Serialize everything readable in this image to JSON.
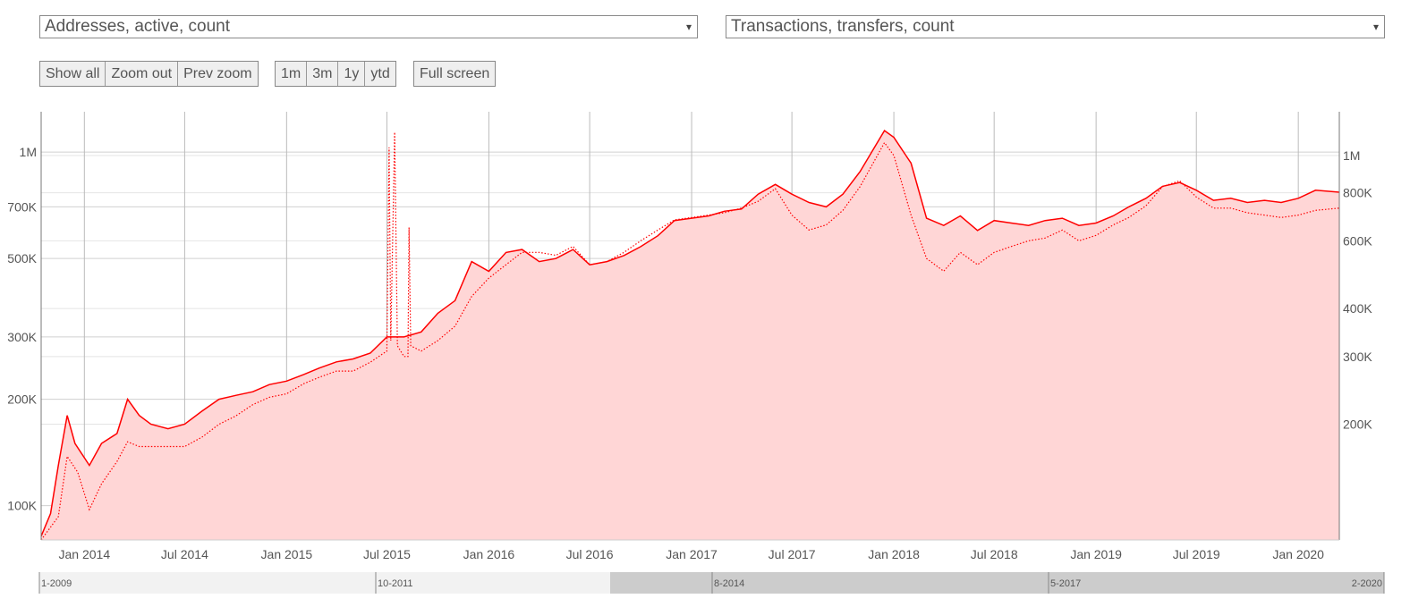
{
  "controls": {
    "left_select": "Addresses, active, count",
    "right_select": "Transactions, transfers, count",
    "zoom_buttons": [
      "Show all",
      "Zoom out",
      "Prev zoom"
    ],
    "range_buttons": [
      "1m",
      "3m",
      "1y",
      "ytd"
    ],
    "fullscreen_button": "Full screen",
    "caret": "▾"
  },
  "chart_data": {
    "type": "line",
    "title": "",
    "x_axis": {
      "type": "date",
      "range": [
        "2013-10-15",
        "2020-03-15"
      ],
      "ticks": [
        "Jan 2014",
        "Jul 2014",
        "Jan 2015",
        "Jul 2015",
        "Jan 2016",
        "Jul 2016",
        "Jan 2017",
        "Jul 2017",
        "Jan 2018",
        "Jul 2018",
        "Jan 2019",
        "Jul 2019",
        "Jan 2020"
      ]
    },
    "y_left": {
      "scale": "log",
      "range": [
        80000,
        1300000
      ],
      "ticks": [
        "100K",
        "200K",
        "300K",
        "500K",
        "700K",
        "1M"
      ],
      "tick_values": [
        100000,
        200000,
        300000,
        500000,
        700000,
        1000000
      ]
    },
    "y_right": {
      "scale": "log",
      "range": [
        100000,
        1300000
      ],
      "ticks": [
        "200K",
        "300K",
        "400K",
        "600K",
        "800K",
        "1M"
      ],
      "tick_values": [
        200000,
        300000,
        400000,
        600000,
        800000,
        1000000
      ]
    },
    "grid": true,
    "colors": {
      "line": "#ff0000",
      "fill": "#ffd6d6",
      "grid": "#d0d0d0",
      "vgrid": "#bbbbbb"
    },
    "series": [
      {
        "axis": "left",
        "style": "solid",
        "points": [
          [
            "2013-10-15",
            82000
          ],
          [
            "2013-11-01",
            95000
          ],
          [
            "2013-11-15",
            130000
          ],
          [
            "2013-12-01",
            180000
          ],
          [
            "2013-12-15",
            150000
          ],
          [
            "2014-01-10",
            130000
          ],
          [
            "2014-02-01",
            150000
          ],
          [
            "2014-03-01",
            160000
          ],
          [
            "2014-03-20",
            200000
          ],
          [
            "2014-04-10",
            180000
          ],
          [
            "2014-05-01",
            170000
          ],
          [
            "2014-06-01",
            165000
          ],
          [
            "2014-07-01",
            170000
          ],
          [
            "2014-08-01",
            185000
          ],
          [
            "2014-09-01",
            200000
          ],
          [
            "2014-10-01",
            205000
          ],
          [
            "2014-11-01",
            210000
          ],
          [
            "2014-12-01",
            220000
          ],
          [
            "2015-01-01",
            225000
          ],
          [
            "2015-02-01",
            235000
          ],
          [
            "2015-03-01",
            245000
          ],
          [
            "2015-04-01",
            255000
          ],
          [
            "2015-05-01",
            260000
          ],
          [
            "2015-06-01",
            270000
          ],
          [
            "2015-07-01",
            300000
          ],
          [
            "2015-08-01",
            300000
          ],
          [
            "2015-09-01",
            310000
          ],
          [
            "2015-10-01",
            350000
          ],
          [
            "2015-11-01",
            380000
          ],
          [
            "2015-12-01",
            490000
          ],
          [
            "2016-01-01",
            460000
          ],
          [
            "2016-02-01",
            520000
          ],
          [
            "2016-03-01",
            530000
          ],
          [
            "2016-04-01",
            490000
          ],
          [
            "2016-05-01",
            500000
          ],
          [
            "2016-06-01",
            530000
          ],
          [
            "2016-07-01",
            480000
          ],
          [
            "2016-08-01",
            490000
          ],
          [
            "2016-09-01",
            510000
          ],
          [
            "2016-10-01",
            540000
          ],
          [
            "2016-11-01",
            580000
          ],
          [
            "2016-12-01",
            640000
          ],
          [
            "2017-01-01",
            650000
          ],
          [
            "2017-02-01",
            660000
          ],
          [
            "2017-03-01",
            680000
          ],
          [
            "2017-04-01",
            690000
          ],
          [
            "2017-05-01",
            760000
          ],
          [
            "2017-06-01",
            810000
          ],
          [
            "2017-07-01",
            760000
          ],
          [
            "2017-08-01",
            720000
          ],
          [
            "2017-09-01",
            700000
          ],
          [
            "2017-10-01",
            760000
          ],
          [
            "2017-11-01",
            880000
          ],
          [
            "2017-12-15",
            1150000
          ],
          [
            "2018-01-01",
            1100000
          ],
          [
            "2018-02-01",
            930000
          ],
          [
            "2018-03-01",
            650000
          ],
          [
            "2018-04-01",
            620000
          ],
          [
            "2018-05-01",
            660000
          ],
          [
            "2018-06-01",
            600000
          ],
          [
            "2018-07-01",
            640000
          ],
          [
            "2018-08-01",
            630000
          ],
          [
            "2018-09-01",
            620000
          ],
          [
            "2018-10-01",
            640000
          ],
          [
            "2018-11-01",
            650000
          ],
          [
            "2018-12-01",
            620000
          ],
          [
            "2019-01-01",
            630000
          ],
          [
            "2019-02-01",
            660000
          ],
          [
            "2019-03-01",
            700000
          ],
          [
            "2019-04-01",
            740000
          ],
          [
            "2019-05-01",
            800000
          ],
          [
            "2019-06-01",
            820000
          ],
          [
            "2019-07-01",
            780000
          ],
          [
            "2019-08-01",
            730000
          ],
          [
            "2019-09-01",
            740000
          ],
          [
            "2019-10-01",
            720000
          ],
          [
            "2019-11-01",
            730000
          ],
          [
            "2019-12-01",
            720000
          ],
          [
            "2020-01-01",
            740000
          ],
          [
            "2020-02-01",
            780000
          ],
          [
            "2020-03-15",
            770000
          ]
        ]
      },
      {
        "axis": "right",
        "style": "dotted",
        "points": [
          [
            "2013-10-15",
            100000
          ],
          [
            "2013-11-15",
            115000
          ],
          [
            "2013-12-01",
            165000
          ],
          [
            "2013-12-20",
            150000
          ],
          [
            "2014-01-10",
            120000
          ],
          [
            "2014-02-01",
            140000
          ],
          [
            "2014-03-01",
            160000
          ],
          [
            "2014-03-20",
            180000
          ],
          [
            "2014-04-10",
            175000
          ],
          [
            "2014-05-01",
            175000
          ],
          [
            "2014-06-01",
            175000
          ],
          [
            "2014-07-01",
            175000
          ],
          [
            "2014-08-01",
            185000
          ],
          [
            "2014-09-01",
            200000
          ],
          [
            "2014-10-01",
            210000
          ],
          [
            "2014-11-01",
            225000
          ],
          [
            "2014-12-01",
            235000
          ],
          [
            "2015-01-01",
            240000
          ],
          [
            "2015-02-01",
            255000
          ],
          [
            "2015-03-01",
            265000
          ],
          [
            "2015-04-01",
            275000
          ],
          [
            "2015-05-01",
            275000
          ],
          [
            "2015-06-01",
            290000
          ],
          [
            "2015-07-01",
            310000
          ],
          [
            "2015-07-05",
            1050000
          ],
          [
            "2015-07-08",
            330000
          ],
          [
            "2015-07-15",
            1150000
          ],
          [
            "2015-07-20",
            320000
          ],
          [
            "2015-08-01",
            300000
          ],
          [
            "2015-08-08",
            300000
          ],
          [
            "2015-08-10",
            650000
          ],
          [
            "2015-08-13",
            320000
          ],
          [
            "2015-09-01",
            310000
          ],
          [
            "2015-10-01",
            330000
          ],
          [
            "2015-11-01",
            360000
          ],
          [
            "2015-12-01",
            430000
          ],
          [
            "2016-01-01",
            480000
          ],
          [
            "2016-02-01",
            520000
          ],
          [
            "2016-03-01",
            560000
          ],
          [
            "2016-04-01",
            560000
          ],
          [
            "2016-05-01",
            550000
          ],
          [
            "2016-06-01",
            580000
          ],
          [
            "2016-07-01",
            520000
          ],
          [
            "2016-08-01",
            530000
          ],
          [
            "2016-09-01",
            560000
          ],
          [
            "2016-10-01",
            600000
          ],
          [
            "2016-11-01",
            640000
          ],
          [
            "2016-12-01",
            680000
          ],
          [
            "2017-01-01",
            690000
          ],
          [
            "2017-02-01",
            700000
          ],
          [
            "2017-03-01",
            710000
          ],
          [
            "2017-04-01",
            730000
          ],
          [
            "2017-05-01",
            760000
          ],
          [
            "2017-06-01",
            820000
          ],
          [
            "2017-07-01",
            700000
          ],
          [
            "2017-08-01",
            640000
          ],
          [
            "2017-09-01",
            660000
          ],
          [
            "2017-10-01",
            720000
          ],
          [
            "2017-11-01",
            830000
          ],
          [
            "2017-12-15",
            1080000
          ],
          [
            "2018-01-01",
            1000000
          ],
          [
            "2018-02-01",
            700000
          ],
          [
            "2018-03-01",
            540000
          ],
          [
            "2018-04-01",
            500000
          ],
          [
            "2018-05-01",
            560000
          ],
          [
            "2018-06-01",
            520000
          ],
          [
            "2018-07-01",
            560000
          ],
          [
            "2018-08-01",
            580000
          ],
          [
            "2018-09-01",
            600000
          ],
          [
            "2018-10-01",
            610000
          ],
          [
            "2018-11-01",
            640000
          ],
          [
            "2018-12-01",
            600000
          ],
          [
            "2019-01-01",
            620000
          ],
          [
            "2019-02-01",
            660000
          ],
          [
            "2019-03-01",
            690000
          ],
          [
            "2019-04-01",
            740000
          ],
          [
            "2019-05-01",
            830000
          ],
          [
            "2019-06-01",
            860000
          ],
          [
            "2019-07-01",
            780000
          ],
          [
            "2019-08-01",
            730000
          ],
          [
            "2019-09-01",
            730000
          ],
          [
            "2019-10-01",
            710000
          ],
          [
            "2019-11-01",
            700000
          ],
          [
            "2019-12-01",
            690000
          ],
          [
            "2020-01-01",
            700000
          ],
          [
            "2020-02-01",
            720000
          ],
          [
            "2020-03-15",
            730000
          ]
        ]
      }
    ]
  },
  "navigator": {
    "labels": [
      "1-2009",
      "10-2011",
      "8-2014",
      "5-2017",
      "2-2020"
    ],
    "selection": {
      "from": "2013-10",
      "to": "2020-03"
    }
  }
}
